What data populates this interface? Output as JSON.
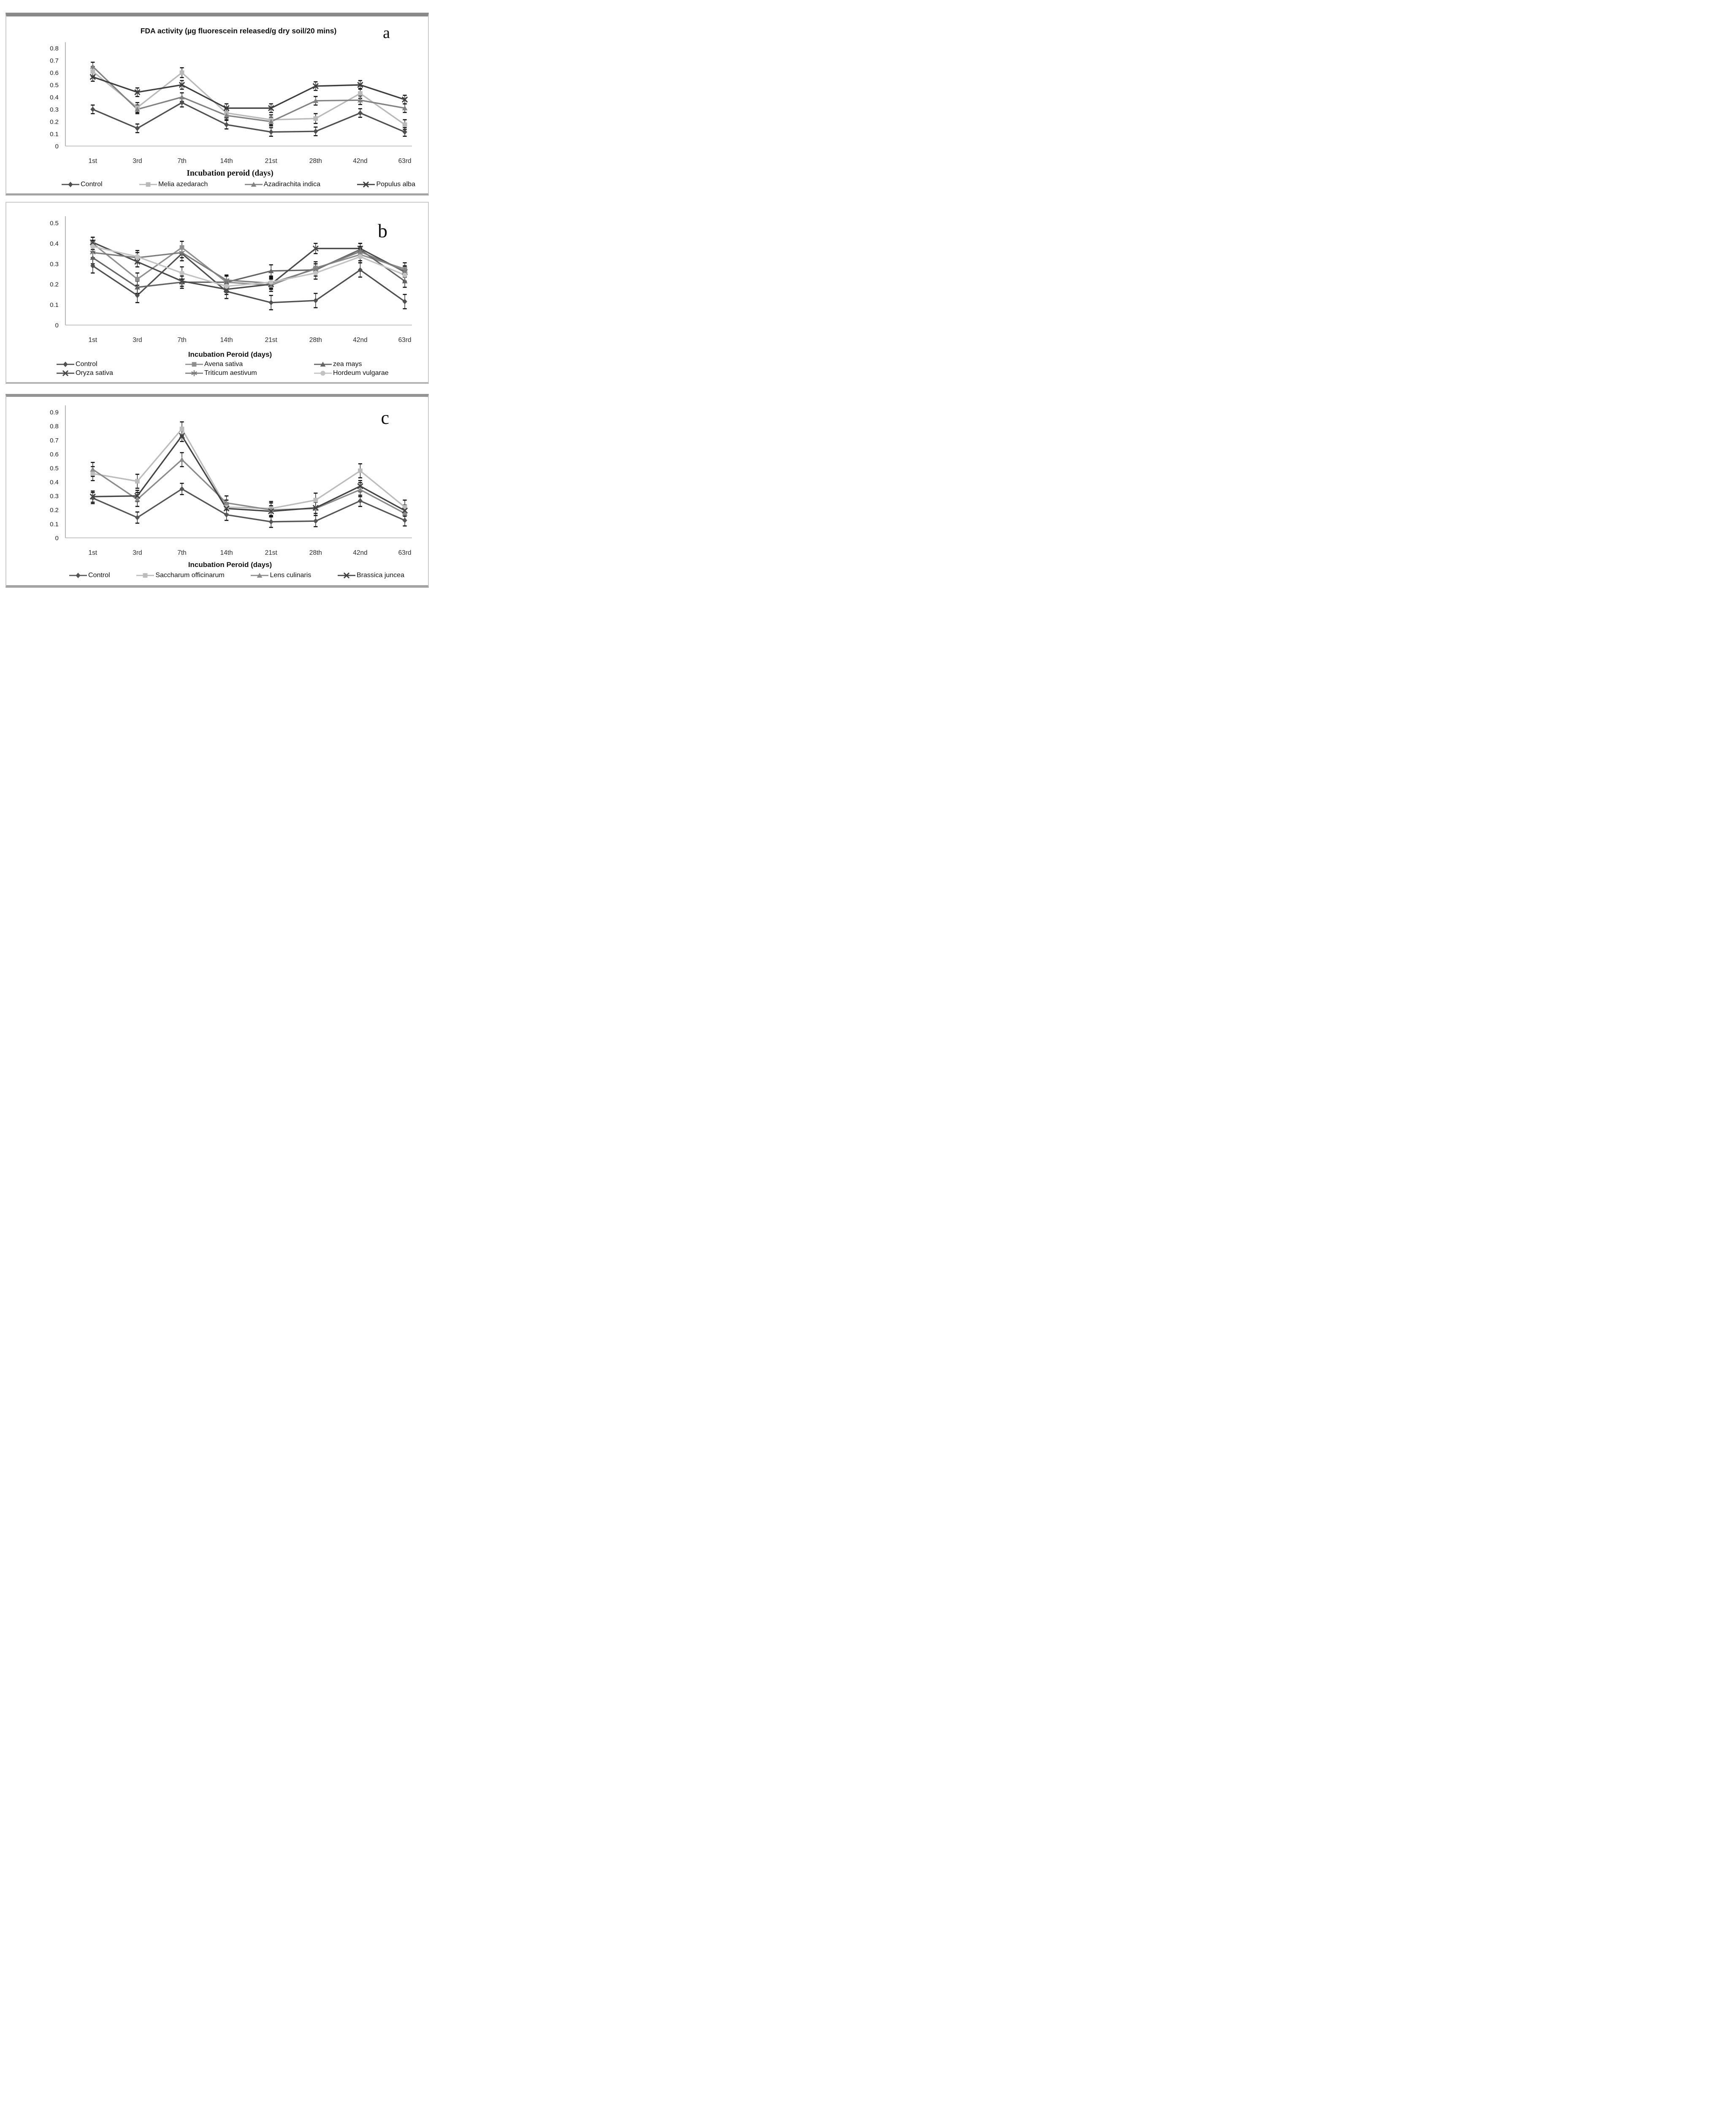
{
  "figure": {
    "panel_labels": [
      "a",
      "b",
      "c"
    ]
  },
  "chart_data": [
    {
      "type": "line",
      "panel_label": "a",
      "title": "FDA activity (µg fluorescein released/g dry soil/20 mins)",
      "xlabel": "Incubation peroid (days)",
      "ylabel": "",
      "categories": [
        "1st",
        "3rd",
        "7th",
        "14th",
        "21st",
        "28th",
        "42nd",
        "63rd"
      ],
      "ylim": [
        0,
        0.8
      ],
      "yticks": [
        "0",
        "0.1",
        "0.2",
        "0.3",
        "0.4",
        "0.5",
        "0.6",
        "0.7",
        "0.8"
      ],
      "grid": false,
      "legend_position": "bottom",
      "error_bars": true,
      "series": [
        {
          "name": "Control",
          "marker": "diamond",
          "color": "#4f4f4f",
          "error_bar": 0.035,
          "values": [
            0.3,
            0.145,
            0.355,
            0.175,
            0.115,
            0.12,
            0.27,
            0.115
          ]
        },
        {
          "name": "Melia azedarach",
          "marker": "square",
          "color": "#b9b9b9",
          "error_bar": 0.04,
          "values": [
            0.61,
            0.315,
            0.6,
            0.27,
            0.215,
            0.225,
            0.43,
            0.175
          ]
        },
        {
          "name": "Azadirachita indica",
          "marker": "triangle",
          "color": "#828282",
          "error_bar": 0.035,
          "values": [
            0.65,
            0.3,
            0.4,
            0.25,
            0.2,
            0.37,
            0.375,
            0.31
          ]
        },
        {
          "name": "Populus alba",
          "marker": "x",
          "color": "#3d3d3d",
          "error_bar": 0.035,
          "values": [
            0.565,
            0.44,
            0.5,
            0.31,
            0.31,
            0.49,
            0.5,
            0.38
          ]
        }
      ]
    },
    {
      "type": "line",
      "panel_label": "b",
      "title": "",
      "xlabel": "Incubation Peroid (days)",
      "ylabel": "",
      "categories": [
        "1st",
        "3rd",
        "7th",
        "14th",
        "21st",
        "28th",
        "42nd",
        "63rd"
      ],
      "ylim": [
        0,
        0.5
      ],
      "yticks": [
        "0",
        "0.1",
        "0.2",
        "0.3",
        "0.4",
        "0.5"
      ],
      "grid": false,
      "legend_position": "bottom",
      "error_bars": true,
      "series": [
        {
          "name": "Control",
          "marker": "diamond",
          "color": "#4f4f4f",
          "error_bar": 0.035,
          "values": [
            0.29,
            0.145,
            0.35,
            0.165,
            0.11,
            0.12,
            0.27,
            0.115
          ]
        },
        {
          "name": "Avena sativa",
          "marker": "square",
          "color": "#8f8f8f",
          "error_bar": 0.03,
          "values": [
            0.4,
            0.225,
            0.38,
            0.21,
            0.195,
            0.28,
            0.345,
            0.275
          ]
        },
        {
          "name": "zea mays",
          "marker": "triangle",
          "color": "#646464",
          "error_bar": 0.03,
          "values": [
            0.33,
            0.185,
            0.21,
            0.21,
            0.265,
            0.27,
            0.37,
            0.215
          ]
        },
        {
          "name": "Oryza sativa",
          "marker": "x",
          "color": "#4a4a4a",
          "error_bar": 0.025,
          "values": [
            0.405,
            0.31,
            0.215,
            0.175,
            0.2,
            0.375,
            0.375,
            0.26
          ]
        },
        {
          "name": "Triticum aestivum",
          "marker": "asterisk",
          "color": "#7d7d7d",
          "error_bar": 0.025,
          "values": [
            0.355,
            0.33,
            0.355,
            0.22,
            0.205,
            0.275,
            0.36,
            0.265
          ]
        },
        {
          "name": "Hordeum vulgarae",
          "marker": "circle",
          "color": "#c2c2c2",
          "error_bar": 0.03,
          "values": [
            0.385,
            0.335,
            0.255,
            0.19,
            0.21,
            0.255,
            0.335,
            0.245
          ]
        }
      ]
    },
    {
      "type": "line",
      "panel_label": "c",
      "title": "",
      "xlabel": "Incubation Peroid (days)",
      "ylabel": "",
      "categories": [
        "1st",
        "3rd",
        "7th",
        "14th",
        "21st",
        "28th",
        "42nd",
        "63rd"
      ],
      "ylim": [
        0,
        0.9
      ],
      "yticks": [
        "0",
        "0.1",
        "0.2",
        "0.3",
        "0.4",
        "0.5",
        "0.6",
        "0.7",
        "0.8",
        "0.9"
      ],
      "grid": false,
      "legend_position": "bottom",
      "error_bars": true,
      "series": [
        {
          "name": "Control",
          "marker": "diamond",
          "color": "#555555",
          "error_bar": 0.04,
          "values": [
            0.285,
            0.145,
            0.35,
            0.165,
            0.115,
            0.12,
            0.265,
            0.125
          ]
        },
        {
          "name": "Saccharum officinarum",
          "marker": "square",
          "color": "#bcbcbc",
          "error_bar": 0.05,
          "values": [
            0.46,
            0.405,
            0.78,
            0.22,
            0.21,
            0.27,
            0.48,
            0.22
          ]
        },
        {
          "name": "Lens culinaris",
          "marker": "triangle",
          "color": "#8a8a8a",
          "error_bar": 0.05,
          "values": [
            0.49,
            0.275,
            0.56,
            0.25,
            0.2,
            0.21,
            0.345,
            0.175
          ]
        },
        {
          "name": "Brassica juncea",
          "marker": "x",
          "color": "#434343",
          "error_bar": 0.04,
          "values": [
            0.295,
            0.3,
            0.73,
            0.21,
            0.19,
            0.215,
            0.37,
            0.195
          ]
        }
      ]
    }
  ],
  "axis_colors": {
    "axis_line": "#adadad",
    "baseline": "#bdbdbd",
    "error_bar": "#141414",
    "tick_text": "#1c1c1c"
  }
}
